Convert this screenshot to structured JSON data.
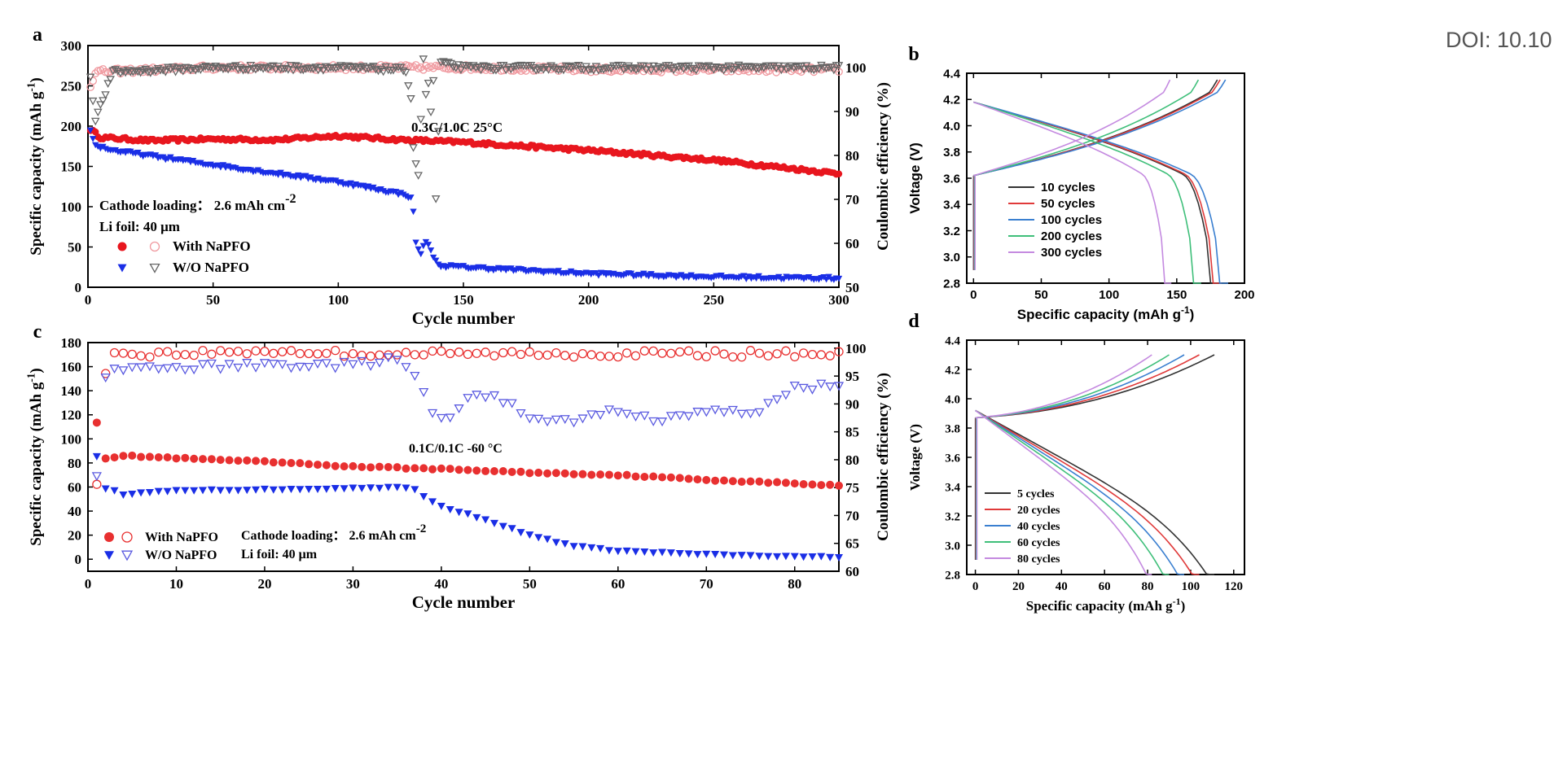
{
  "doi_text": "DOI: 10.10",
  "chart_data": [
    {
      "panel": "a",
      "type": "scatter",
      "xlabel": "Cycle number",
      "ylabel": "Specific capacity (mAh g-1)",
      "ylabel2": "Coulombic efficiency (%)",
      "xlim": [
        0,
        300
      ],
      "ylim": [
        0,
        300
      ],
      "ylim2": [
        50,
        105
      ],
      "xticks": [
        0,
        50,
        100,
        150,
        200,
        250,
        300
      ],
      "yticks": [
        0,
        50,
        100,
        150,
        200,
        250,
        300
      ],
      "yticks2": [
        50,
        60,
        70,
        80,
        90,
        100
      ],
      "annotations": [
        "0.3C/1.0C  25°C",
        "Cathode loading： 2.6 mAh cm",
        "-2",
        "Li foil: 40 μm"
      ],
      "legend": [
        "With NaPFO",
        "W/O NaPFO"
      ],
      "series": [
        {
          "name": "With NaPFO",
          "marker": "filled-circle",
          "axis": "left",
          "color": "#e8161e",
          "points": [
            [
              1,
              196
            ],
            [
              5,
              186
            ],
            [
              25,
              182
            ],
            [
              50,
              184
            ],
            [
              75,
              183
            ],
            [
              100,
              188
            ],
            [
              125,
              183
            ],
            [
              150,
              180
            ],
            [
              200,
              170
            ],
            [
              250,
              158
            ],
            [
              300,
              141
            ]
          ]
        },
        {
          "name": "With NaPFO",
          "marker": "open-circle",
          "axis": "right",
          "color": "#f09aa0",
          "points": [
            [
              1,
              96
            ],
            [
              3,
              99
            ],
            [
              50,
              100
            ],
            [
              100,
              100
            ],
            [
              150,
              100
            ],
            [
              200,
              99.5
            ],
            [
              250,
              99.5
            ],
            [
              300,
              99.5
            ]
          ]
        },
        {
          "name": "W/O NaPFO",
          "marker": "filled-triangle",
          "axis": "left",
          "color": "#1a2ee6",
          "points": [
            [
              1,
              194
            ],
            [
              3,
              176
            ],
            [
              10,
              170
            ],
            [
              50,
              152
            ],
            [
              100,
              131
            ],
            [
              127,
              115
            ],
            [
              129,
              110
            ],
            [
              130,
              94
            ],
            [
              131,
              55
            ],
            [
              133,
              42
            ],
            [
              135,
              58
            ],
            [
              137,
              45
            ],
            [
              140,
              27
            ],
            [
              150,
              25
            ],
            [
              200,
              17
            ],
            [
              250,
              13
            ],
            [
              300,
              11
            ]
          ]
        },
        {
          "name": "W/O NaPFO",
          "marker": "open-triangle",
          "axis": "right",
          "color": "#666666",
          "points": [
            [
              1,
              98
            ],
            [
              3,
              88
            ],
            [
              10,
              99
            ],
            [
              50,
              100
            ],
            [
              100,
              100
            ],
            [
              127,
              99.5
            ],
            [
              129,
              93
            ],
            [
              130,
              82
            ],
            [
              132,
              75
            ],
            [
              134,
              102
            ],
            [
              135,
              94
            ],
            [
              136,
              96
            ],
            [
              137,
              90
            ],
            [
              138,
              97
            ],
            [
              139,
              70
            ],
            [
              141,
              101
            ],
            [
              150,
              100
            ],
            [
              200,
              100
            ],
            [
              250,
              100
            ],
            [
              300,
              100
            ]
          ]
        }
      ]
    },
    {
      "panel": "b",
      "type": "line",
      "xlabel": "Specific capacity (mAh g-1)",
      "ylabel": "Voltage (V)",
      "xlim": [
        -5,
        200
      ],
      "ylim": [
        2.8,
        4.4
      ],
      "xticks": [
        0,
        50,
        100,
        150,
        200
      ],
      "yticks": [
        2.8,
        3.0,
        3.2,
        3.4,
        3.6,
        3.8,
        4.0,
        4.2,
        4.4
      ],
      "legend": [
        "10   cycles",
        "50   cycles",
        "100 cycles",
        "200 cycles",
        "300 cycles"
      ],
      "series": [
        {
          "name": "10   cycles",
          "color": "#333333",
          "max_capacity": 181,
          "charge_capacity": 180
        },
        {
          "name": "50   cycles",
          "color": "#e03a3a",
          "max_capacity": 183,
          "charge_capacity": 182
        },
        {
          "name": "100 cycles",
          "color": "#3a7fd0",
          "max_capacity": 188,
          "charge_capacity": 186
        },
        {
          "name": "200 cycles",
          "color": "#3fbf7a",
          "max_capacity": 168,
          "charge_capacity": 166
        },
        {
          "name": "300 cycles",
          "color": "#c48ae0",
          "max_capacity": 146,
          "charge_capacity": 145
        }
      ]
    },
    {
      "panel": "c",
      "type": "scatter",
      "xlabel": "Cycle number",
      "ylabel": "Specific capacity (mAh g-1)",
      "ylabel2": "Coulombic efficiency (%)",
      "xlim": [
        0,
        85
      ],
      "ylim": [
        -10,
        180
      ],
      "ylim2": [
        60,
        101
      ],
      "xticks": [
        0,
        10,
        20,
        30,
        40,
        50,
        60,
        70,
        80
      ],
      "yticks": [
        0,
        20,
        40,
        60,
        80,
        100,
        120,
        140,
        160,
        180
      ],
      "yticks2": [
        60,
        65,
        70,
        75,
        80,
        85,
        90,
        95,
        100
      ],
      "annotations": [
        "0.1C/0.1C  -60 °C",
        "Cathode loading： 2.6 mAh cm",
        "-2",
        "Li foil: 40 μm"
      ],
      "legend": [
        "With NaPFO",
        "W/O NaPFO"
      ],
      "series": [
        {
          "name": "With NaPFO",
          "marker": "filled-circle",
          "axis": "left",
          "color": "#e83030",
          "points": [
            [
              1,
              114
            ],
            [
              2,
              84
            ],
            [
              4,
              86
            ],
            [
              10,
              84
            ],
            [
              20,
              81
            ],
            [
              30,
              77
            ],
            [
              40,
              75
            ],
            [
              50,
              72
            ],
            [
              60,
              70
            ],
            [
              70,
              66
            ],
            [
              80,
              63
            ],
            [
              85,
              61
            ]
          ]
        },
        {
          "name": "With NaPFO",
          "marker": "open-circle",
          "axis": "right",
          "color": "#e83030",
          "points": [
            [
              1,
              76
            ],
            [
              2,
              96
            ],
            [
              3,
              99
            ],
            [
              10,
              99
            ],
            [
              20,
              99.5
            ],
            [
              30,
              99
            ],
            [
              40,
              99
            ],
            [
              50,
              99
            ],
            [
              60,
              99
            ],
            [
              70,
              99
            ],
            [
              80,
              99
            ],
            [
              85,
              99
            ]
          ]
        },
        {
          "name": "W/O NaPFO",
          "marker": "filled-triangle",
          "axis": "left",
          "color": "#1a2ee6",
          "points": [
            [
              1,
              85
            ],
            [
              2,
              59
            ],
            [
              3,
              57
            ],
            [
              4,
              54
            ],
            [
              10,
              57
            ],
            [
              20,
              58
            ],
            [
              30,
              59
            ],
            [
              35,
              60
            ],
            [
              37,
              58
            ],
            [
              38,
              52
            ],
            [
              40,
              44
            ],
            [
              45,
              33
            ],
            [
              50,
              20
            ],
            [
              55,
              11
            ],
            [
              60,
              7
            ],
            [
              70,
              4
            ],
            [
              80,
              2
            ],
            [
              85,
              2
            ]
          ]
        },
        {
          "name": "W/O NaPFO",
          "marker": "open-triangle",
          "axis": "right",
          "color": "#5a5ae0",
          "points": [
            [
              1,
              77
            ],
            [
              2,
              95
            ],
            [
              3,
              96
            ],
            [
              10,
              96.5
            ],
            [
              20,
              97
            ],
            [
              30,
              97
            ],
            [
              35,
              98
            ],
            [
              37,
              95
            ],
            [
              38,
              92
            ],
            [
              39,
              88
            ],
            [
              41,
              87
            ],
            [
              43,
              91.5
            ],
            [
              46,
              91
            ],
            [
              48,
              90.5
            ],
            [
              50,
              87
            ],
            [
              55,
              87
            ],
            [
              60,
              89
            ],
            [
              65,
              87
            ],
            [
              70,
              89
            ],
            [
              75,
              88
            ],
            [
              80,
              93
            ],
            [
              85,
              93.5
            ]
          ]
        }
      ]
    },
    {
      "panel": "d",
      "type": "line",
      "xlabel": "Specific capacity (mAh g-1)",
      "ylabel": "Voltage (V)",
      "xlim": [
        -4,
        125
      ],
      "ylim": [
        2.8,
        4.4
      ],
      "xticks": [
        0,
        20,
        40,
        60,
        80,
        100,
        120
      ],
      "yticks": [
        2.8,
        3.0,
        3.2,
        3.4,
        3.6,
        3.8,
        4.0,
        4.2,
        4.4
      ],
      "legend": [
        "5 cycles",
        "20 cycles",
        "40 cycles",
        "60 cycles",
        "80 cycles"
      ],
      "series": [
        {
          "name": "5 cycles",
          "color": "#333333",
          "max_capacity": 111,
          "charge_capacity": 111
        },
        {
          "name": "20 cycles",
          "color": "#e03a3a",
          "max_capacity": 104,
          "charge_capacity": 104
        },
        {
          "name": "40 cycles",
          "color": "#3a7fd0",
          "max_capacity": 97,
          "charge_capacity": 97
        },
        {
          "name": "60 cycles",
          "color": "#3fbf7a",
          "max_capacity": 90,
          "charge_capacity": 90
        },
        {
          "name": "80 cycles",
          "color": "#c48ae0",
          "max_capacity": 82,
          "charge_capacity": 82
        }
      ]
    }
  ]
}
